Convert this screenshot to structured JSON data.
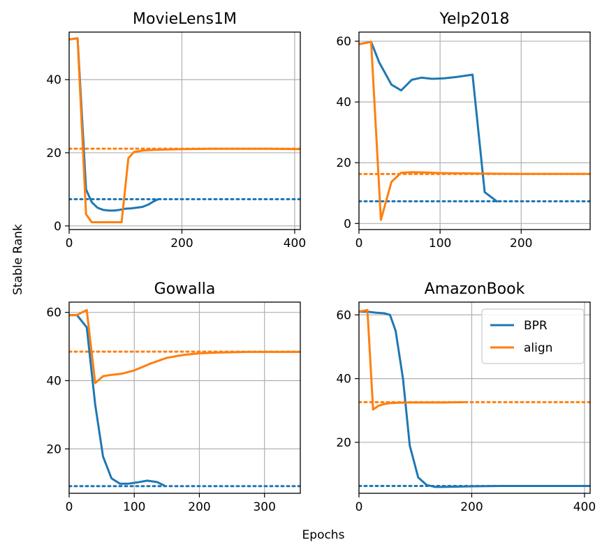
{
  "figure": {
    "ylabel": "Stable Rank",
    "xlabel": "Epochs",
    "colors": {
      "BPR": "#1f77b4",
      "align": "#ff7f0e",
      "grid": "#b0b0b0"
    }
  },
  "legend": {
    "placement": "upper-right of AmazonBook panel",
    "entries": [
      "BPR",
      "align"
    ]
  },
  "chart_data": [
    {
      "type": "line",
      "title": "MovieLens1M",
      "xlim": [
        0,
        410
      ],
      "ylim": [
        -1,
        53
      ],
      "xticks": [
        0,
        200,
        400
      ],
      "yticks": [
        0,
        20,
        40
      ],
      "grid": true,
      "series": [
        {
          "name": "BPR",
          "color": "#1f77b4",
          "x": [
            0,
            15,
            30,
            40,
            50,
            60,
            70,
            80,
            90,
            100,
            110,
            120,
            130,
            140,
            150,
            158
          ],
          "y": [
            51,
            51.3,
            10,
            6.5,
            5,
            4.4,
            4.2,
            4.2,
            4.4,
            4.7,
            4.8,
            5.0,
            5.2,
            5.8,
            6.7,
            7.3
          ]
        },
        {
          "name": "align",
          "color": "#ff7f0e",
          "x": [
            0,
            15,
            30,
            40,
            50,
            60,
            70,
            80,
            93,
            105,
            115,
            130,
            150,
            200,
            250,
            300,
            350,
            410
          ],
          "y": [
            51,
            51.3,
            3.2,
            1.0,
            1.0,
            1.0,
            1.0,
            1.0,
            1.0,
            18.5,
            20.2,
            20.6,
            20.8,
            21.0,
            21.1,
            21.1,
            21.1,
            21.0
          ]
        }
      ],
      "reference_lines": [
        {
          "series": "BPR",
          "y": 7.3
        },
        {
          "series": "align",
          "y": 21.1
        }
      ]
    },
    {
      "type": "line",
      "title": "Yelp2018",
      "xlim": [
        0,
        285
      ],
      "ylim": [
        -2,
        63
      ],
      "xticks": [
        0,
        100,
        200
      ],
      "yticks": [
        0,
        20,
        40,
        60
      ],
      "grid": true,
      "series": [
        {
          "name": "BPR",
          "color": "#1f77b4",
          "x": [
            0,
            15,
            25,
            40,
            52,
            65,
            77,
            90,
            105,
            120,
            140,
            155,
            170
          ],
          "y": [
            59,
            59.8,
            53,
            45.7,
            43.8,
            47.3,
            48,
            47.6,
            47.8,
            48.2,
            49,
            10.3,
            7.3
          ]
        },
        {
          "name": "align",
          "color": "#ff7f0e",
          "x": [
            0,
            15,
            27,
            40,
            52,
            65,
            80,
            100,
            130,
            160,
            200,
            250,
            285
          ],
          "y": [
            59,
            59.8,
            1.2,
            13.7,
            16.7,
            16.9,
            16.8,
            16.6,
            16.5,
            16.4,
            16.3,
            16.3,
            16.3
          ]
        }
      ],
      "reference_lines": [
        {
          "series": "BPR",
          "y": 7.3
        },
        {
          "series": "align",
          "y": 16.3
        }
      ]
    },
    {
      "type": "line",
      "title": "Gowalla",
      "xlim": [
        0,
        355
      ],
      "ylim": [
        7,
        63
      ],
      "xticks": [
        0,
        100,
        200,
        300
      ],
      "yticks": [
        20,
        40,
        60
      ],
      "grid": true,
      "series": [
        {
          "name": "BPR",
          "color": "#1f77b4",
          "x": [
            0,
            12,
            27,
            40,
            52,
            65,
            78,
            90,
            105,
            120,
            135,
            145
          ],
          "y": [
            59.2,
            59.2,
            55.6,
            33,
            17.8,
            11.4,
            9.8,
            9.8,
            10.2,
            10.7,
            10.3,
            9.4
          ]
        },
        {
          "name": "align",
          "color": "#ff7f0e",
          "x": [
            0,
            12,
            27,
            40,
            52,
            65,
            80,
            100,
            125,
            150,
            175,
            200,
            225,
            250,
            275,
            300,
            325,
            355
          ],
          "y": [
            59.2,
            59.2,
            60.7,
            39.3,
            41.3,
            41.7,
            42,
            43,
            45,
            46.7,
            47.5,
            48,
            48.2,
            48.3,
            48.4,
            48.4,
            48.4,
            48.4
          ]
        }
      ],
      "reference_lines": [
        {
          "series": "BPR",
          "y": 9.1
        },
        {
          "series": "align",
          "y": 48.5
        }
      ]
    },
    {
      "type": "line",
      "title": "AmazonBook",
      "xlim": [
        0,
        410
      ],
      "ylim": [
        4,
        64
      ],
      "xticks": [
        0,
        200,
        400
      ],
      "yticks": [
        20,
        40,
        60
      ],
      "grid": true,
      "series": [
        {
          "name": "BPR",
          "color": "#1f77b4",
          "x": [
            0,
            15,
            30,
            45,
            55,
            65,
            78,
            90,
            105,
            120,
            135,
            150,
            200,
            250,
            300,
            350,
            410
          ],
          "y": [
            61,
            61,
            60.7,
            60.5,
            60,
            55,
            40,
            19,
            9,
            6.6,
            6.0,
            6.0,
            6.2,
            6.3,
            6.3,
            6.3,
            6.3
          ]
        },
        {
          "name": "align",
          "color": "#ff7f0e",
          "x": [
            0,
            15,
            25,
            35,
            45,
            55,
            70,
            90,
            120,
            150,
            185
          ],
          "y": [
            61,
            61.5,
            30.3,
            31.5,
            32,
            32.3,
            32.4,
            32.5,
            32.5,
            32.5,
            32.6
          ]
        }
      ],
      "reference_lines": [
        {
          "series": "BPR",
          "y": 6.3
        },
        {
          "series": "align",
          "y": 32.6
        }
      ]
    }
  ]
}
